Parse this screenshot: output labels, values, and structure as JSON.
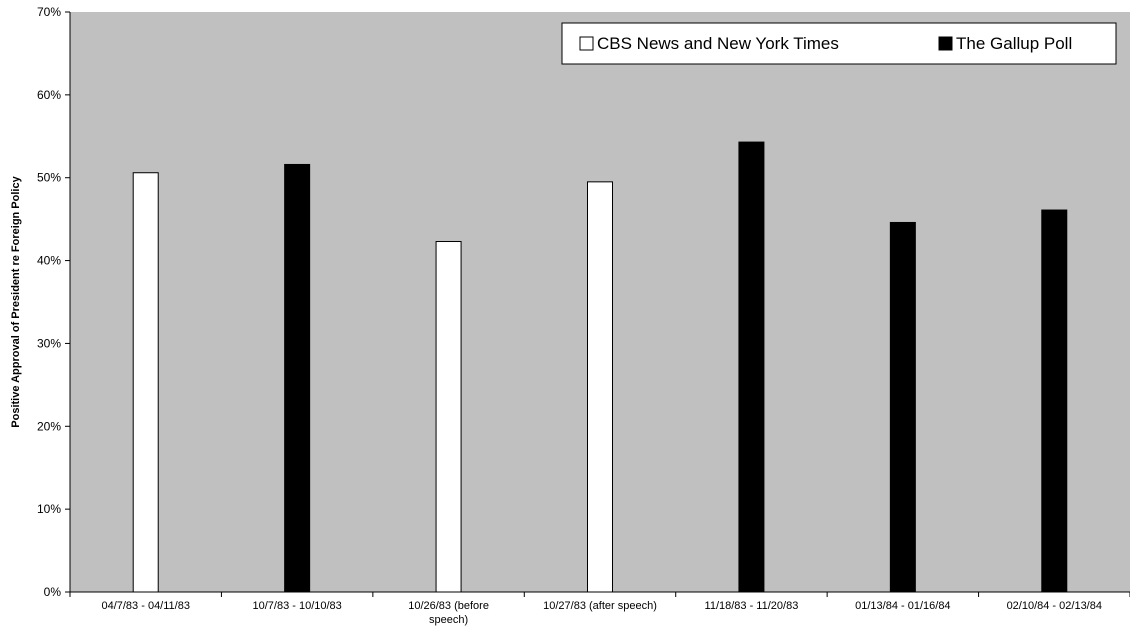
{
  "chart_data": {
    "type": "bar",
    "title": "",
    "xlabel": "",
    "ylabel": "Positive Approval of President re Foreign Policy",
    "ylim": [
      0,
      70
    ],
    "y_tick_values": [
      0,
      10,
      20,
      30,
      40,
      50,
      60,
      70
    ],
    "y_tick_labels": [
      "0%",
      "10%",
      "20%",
      "30%",
      "40%",
      "50%",
      "60%",
      "70%"
    ],
    "grid": false,
    "legend_position": "top-right",
    "plot_background": "#c0c0c0",
    "categories": [
      [
        "04/7/83 - 04/11/83"
      ],
      [
        "10/7/83 - 10/10/83"
      ],
      [
        "10/26/83 (before",
        "speech)"
      ],
      [
        "10/27/83 (after speech)"
      ],
      [
        "11/18/83 - 11/20/83"
      ],
      [
        "01/13/84 - 01/16/84"
      ],
      [
        "02/10/84 - 02/13/84"
      ]
    ],
    "series": [
      {
        "name": "CBS News and New York Times",
        "color": "#ffffff",
        "values": [
          50.6,
          null,
          42.3,
          49.5,
          null,
          null,
          null
        ]
      },
      {
        "name": "The Gallup Poll",
        "color": "#000000",
        "values": [
          null,
          51.6,
          null,
          null,
          54.3,
          44.6,
          46.1
        ]
      }
    ]
  }
}
